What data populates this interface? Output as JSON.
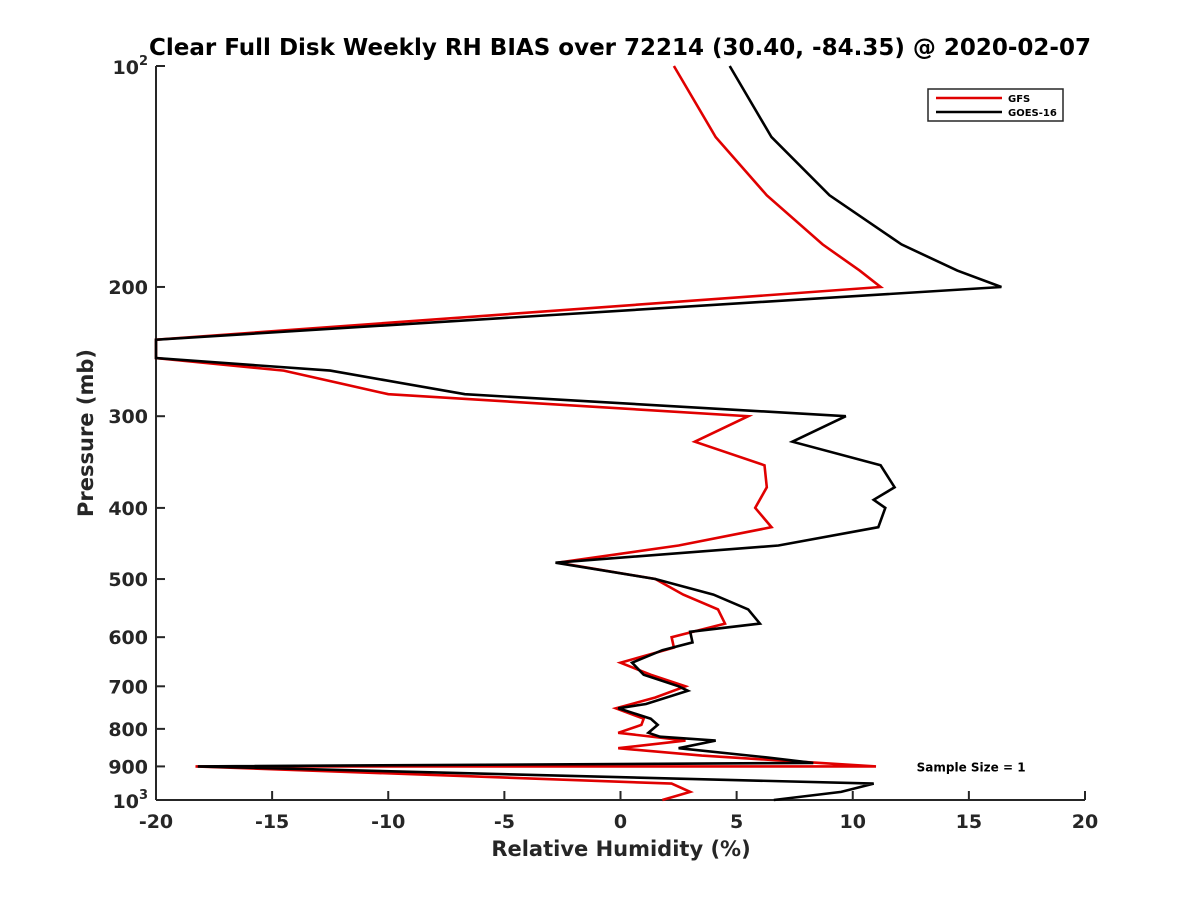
{
  "chart_data": {
    "type": "line",
    "title": "Clear Full Disk Weekly RH BIAS over 72214 (30.40, -84.35) @ 2020-02-07",
    "xlabel": "Relative Humidity (%)",
    "ylabel": "Pressure (mb)",
    "xlim": [
      -20,
      20
    ],
    "ylim": [
      100,
      1000
    ],
    "y_scale": "log",
    "y_reversed": true,
    "grid": false,
    "legend_position": "top-right",
    "x_ticks": [
      "-20",
      "-15",
      "-10",
      "-5",
      "0",
      "5",
      "10",
      "15",
      "20"
    ],
    "y_ticks": [
      {
        "value": 100,
        "base": "10",
        "exp": "2"
      },
      {
        "value": 200,
        "label": "200"
      },
      {
        "value": 300,
        "label": "300"
      },
      {
        "value": 400,
        "label": "400"
      },
      {
        "value": 500,
        "label": "500"
      },
      {
        "value": 600,
        "label": "600"
      },
      {
        "value": 700,
        "label": "700"
      },
      {
        "value": 800,
        "label": "800"
      },
      {
        "value": 900,
        "label": "900"
      },
      {
        "value": 1000,
        "base": "10",
        "exp": "3"
      }
    ],
    "series": [
      {
        "name": "GFS",
        "color": "#e00000",
        "points": [
          [
            2.3,
            100
          ],
          [
            4.1,
            125
          ],
          [
            6.3,
            150
          ],
          [
            8.7,
            175
          ],
          [
            10.3,
            190
          ],
          [
            11.2,
            200
          ],
          [
            -20,
            236
          ],
          [
            -20,
            250
          ],
          [
            -14.5,
            260
          ],
          [
            -10.0,
            280
          ],
          [
            5.5,
            300
          ],
          [
            3.2,
            325
          ],
          [
            6.2,
            350
          ],
          [
            6.3,
            375
          ],
          [
            5.8,
            400
          ],
          [
            6.5,
            425
          ],
          [
            2.5,
            450
          ],
          [
            -2.7,
            475
          ],
          [
            1.5,
            500
          ],
          [
            2.7,
            525
          ],
          [
            4.2,
            550
          ],
          [
            4.5,
            575
          ],
          [
            2.2,
            600
          ],
          [
            2.3,
            620
          ],
          [
            0.0,
            650
          ],
          [
            1.3,
            675
          ],
          [
            2.8,
            700
          ],
          [
            1.5,
            725
          ],
          [
            -0.2,
            750
          ],
          [
            1.0,
            775
          ],
          [
            0.9,
            790
          ],
          [
            -0.1,
            810
          ],
          [
            2.8,
            830
          ],
          [
            -0.1,
            850
          ],
          [
            3.5,
            870
          ],
          [
            11.0,
            900
          ],
          [
            -18.3,
            900
          ],
          [
            2.2,
            950
          ],
          [
            3.0,
            975
          ],
          [
            1.8,
            1000
          ]
        ]
      },
      {
        "name": "GOES-16",
        "color": "#000000",
        "points": [
          [
            4.7,
            100
          ],
          [
            6.5,
            125
          ],
          [
            9.0,
            150
          ],
          [
            12.1,
            175
          ],
          [
            14.5,
            190
          ],
          [
            16.4,
            200
          ],
          [
            -20,
            236
          ],
          [
            -20,
            250
          ],
          [
            -12.5,
            260
          ],
          [
            -6.7,
            280
          ],
          [
            9.7,
            300
          ],
          [
            7.4,
            325
          ],
          [
            11.2,
            350
          ],
          [
            11.8,
            375
          ],
          [
            10.9,
            390
          ],
          [
            11.4,
            400
          ],
          [
            11.1,
            425
          ],
          [
            6.8,
            450
          ],
          [
            -2.8,
            475
          ],
          [
            1.5,
            500
          ],
          [
            4.0,
            525
          ],
          [
            5.5,
            550
          ],
          [
            6.0,
            575
          ],
          [
            3.0,
            590
          ],
          [
            3.1,
            610
          ],
          [
            1.8,
            625
          ],
          [
            0.5,
            650
          ],
          [
            1.0,
            675
          ],
          [
            2.5,
            700
          ],
          [
            2.9,
            710
          ],
          [
            1.1,
            740
          ],
          [
            -0.1,
            750
          ],
          [
            1.3,
            775
          ],
          [
            1.6,
            790
          ],
          [
            1.2,
            810
          ],
          [
            1.7,
            820
          ],
          [
            4.1,
            830
          ],
          [
            2.5,
            850
          ],
          [
            6.3,
            875
          ],
          [
            8.3,
            890
          ],
          [
            -18.2,
            900
          ],
          [
            10.9,
            950
          ],
          [
            9.5,
            975
          ],
          [
            6.6,
            1000
          ]
        ]
      }
    ],
    "annotations": [
      {
        "text": "Sample Size = 1",
        "x": 14,
        "y": 900
      }
    ]
  }
}
